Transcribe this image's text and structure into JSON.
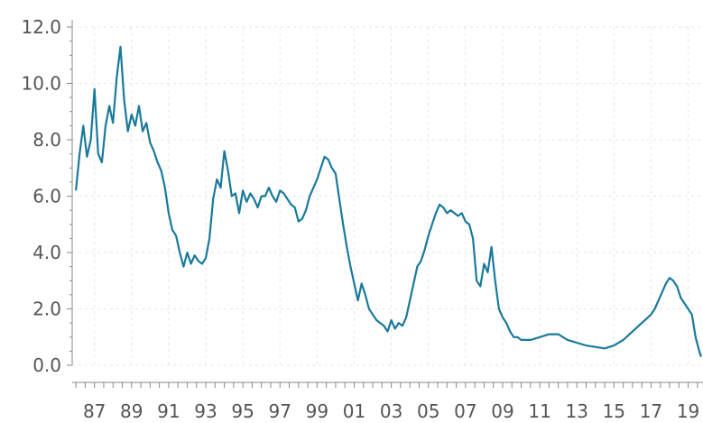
{
  "chart_data": {
    "type": "line",
    "title": "",
    "xlabel": "",
    "ylabel": "",
    "ylim": [
      0,
      12
    ],
    "yticks": [
      "0.0",
      "2.0",
      "4.0",
      "6.0",
      "8.0",
      "10.0",
      "12.0"
    ],
    "xticks": [
      "87",
      "89",
      "91",
      "93",
      "95",
      "97",
      "99",
      "01",
      "03",
      "05",
      "07",
      "09",
      "11",
      "13",
      "15",
      "17",
      "19"
    ],
    "grid": true,
    "line_color": "#1a7a9a",
    "series": [
      {
        "name": "",
        "x": [
          1986.0,
          1986.2,
          1986.4,
          1986.6,
          1986.8,
          1987.0,
          1987.2,
          1987.4,
          1987.6,
          1987.8,
          1988.0,
          1988.2,
          1988.4,
          1988.6,
          1988.8,
          1989.0,
          1989.2,
          1989.4,
          1989.6,
          1989.8,
          1990.0,
          1990.2,
          1990.4,
          1990.6,
          1990.8,
          1991.0,
          1991.2,
          1991.4,
          1991.6,
          1991.8,
          1992.0,
          1992.2,
          1992.4,
          1992.6,
          1992.8,
          1993.0,
          1993.2,
          1993.4,
          1993.6,
          1993.8,
          1994.0,
          1994.2,
          1994.4,
          1994.6,
          1994.8,
          1995.0,
          1995.2,
          1995.4,
          1995.6,
          1995.8,
          1996.0,
          1996.2,
          1996.4,
          1996.6,
          1996.8,
          1997.0,
          1997.2,
          1997.4,
          1997.6,
          1997.8,
          1998.0,
          1998.2,
          1998.4,
          1998.6,
          1998.8,
          1999.0,
          1999.2,
          1999.4,
          1999.6,
          1999.8,
          2000.0,
          2000.2,
          2000.4,
          2000.6,
          2000.8,
          2001.0,
          2001.2,
          2001.4,
          2001.6,
          2001.8,
          2002.0,
          2002.2,
          2002.4,
          2002.6,
          2002.8,
          2003.0,
          2003.2,
          2003.4,
          2003.6,
          2003.8,
          2004.0,
          2004.2,
          2004.4,
          2004.6,
          2004.8,
          2005.0,
          2005.2,
          2005.4,
          2005.6,
          2005.8,
          2006.0,
          2006.2,
          2006.4,
          2006.6,
          2006.8,
          2007.0,
          2007.2,
          2007.4,
          2007.6,
          2007.8,
          2008.0,
          2008.2,
          2008.4,
          2008.6,
          2008.8,
          2009.0,
          2009.2,
          2009.4,
          2009.6,
          2009.8,
          2010.0,
          2010.5,
          2011.0,
          2011.5,
          2012.0,
          2012.5,
          2013.0,
          2013.5,
          2014.0,
          2014.5,
          2015.0,
          2015.5,
          2016.0,
          2016.5,
          2017.0,
          2017.2,
          2017.4,
          2017.6,
          2017.8,
          2018.0,
          2018.2,
          2018.4,
          2018.6,
          2018.8,
          2019.0,
          2019.2,
          2019.4,
          2019.6,
          2019.7
        ],
        "values": [
          6.2,
          7.5,
          8.5,
          7.4,
          8.0,
          9.8,
          7.5,
          7.2,
          8.5,
          9.2,
          8.6,
          10.2,
          11.3,
          9.4,
          8.3,
          8.9,
          8.5,
          9.2,
          8.3,
          8.6,
          7.9,
          7.6,
          7.2,
          6.9,
          6.3,
          5.4,
          4.8,
          4.6,
          4.0,
          3.5,
          4.0,
          3.6,
          3.9,
          3.7,
          3.6,
          3.8,
          4.5,
          5.9,
          6.6,
          6.3,
          7.6,
          6.9,
          6.0,
          6.1,
          5.4,
          6.2,
          5.8,
          6.1,
          5.9,
          5.6,
          6.0,
          6.0,
          6.3,
          6.0,
          5.8,
          6.2,
          6.1,
          5.9,
          5.7,
          5.6,
          5.1,
          5.2,
          5.5,
          6.0,
          6.3,
          6.6,
          7.0,
          7.4,
          7.3,
          7.0,
          6.8,
          5.9,
          5.0,
          4.2,
          3.5,
          2.9,
          2.3,
          2.9,
          2.5,
          2.0,
          1.8,
          1.6,
          1.5,
          1.4,
          1.2,
          1.6,
          1.3,
          1.5,
          1.4,
          1.7,
          2.3,
          2.9,
          3.5,
          3.7,
          4.1,
          4.6,
          5.0,
          5.4,
          5.7,
          5.6,
          5.4,
          5.5,
          5.4,
          5.3,
          5.4,
          5.1,
          5.0,
          4.5,
          3.0,
          2.8,
          3.6,
          3.3,
          4.2,
          3.0,
          2.0,
          1.7,
          1.5,
          1.2,
          1.0,
          1.0,
          0.9,
          0.9,
          1.0,
          1.1,
          1.1,
          0.9,
          0.8,
          0.7,
          0.65,
          0.6,
          0.7,
          0.9,
          1.2,
          1.5,
          1.8,
          2.0,
          2.3,
          2.6,
          2.9,
          3.1,
          3.0,
          2.8,
          2.4,
          2.2,
          2.0,
          1.8,
          1.0,
          0.5,
          0.3
        ]
      }
    ]
  }
}
